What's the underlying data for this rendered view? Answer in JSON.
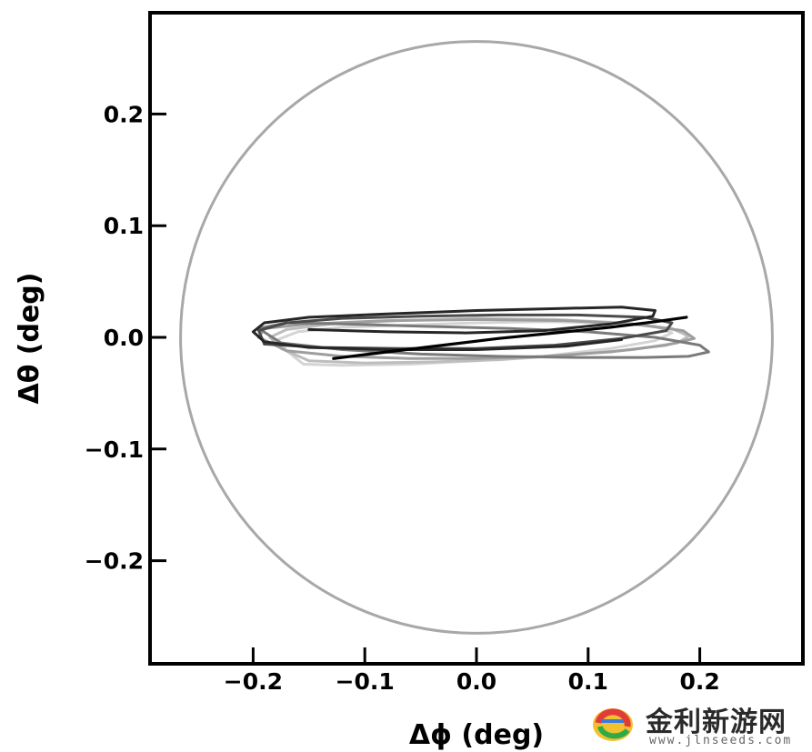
{
  "chart_data": {
    "type": "line",
    "title": "",
    "xlabel": "Δϕ (deg)",
    "ylabel": "Δθ (deg)",
    "xlim": [
      -0.29,
      0.29
    ],
    "ylim": [
      -0.29,
      0.29
    ],
    "x_ticks": [
      -0.2,
      -0.1,
      0.0,
      0.1,
      0.2
    ],
    "y_ticks": [
      -0.2,
      -0.1,
      0.0,
      0.1,
      0.2
    ],
    "x_tick_labels": [
      "−0.2",
      "−0.1",
      "0.0",
      "0.1",
      "0.2"
    ],
    "y_tick_labels": [
      "−0.2",
      "−0.1",
      "0.0",
      "0.1",
      "0.2"
    ],
    "grid": false,
    "legend": "none",
    "boundary_circle": {
      "center": [
        0.0,
        0.0
      ],
      "radius": 0.265,
      "color": "#a8a8a8"
    },
    "series": [
      {
        "color": "#d4d4d4",
        "points": [
          [
            -0.155,
            -0.024
          ],
          [
            -0.12,
            -0.025
          ],
          [
            -0.06,
            -0.024
          ],
          [
            0.0,
            -0.021
          ],
          [
            0.06,
            -0.017
          ],
          [
            0.12,
            -0.01
          ],
          [
            0.16,
            -0.003
          ],
          [
            0.175,
            0.004
          ],
          [
            0.16,
            0.01
          ],
          [
            0.12,
            0.013
          ],
          [
            0.06,
            0.014
          ],
          [
            0.0,
            0.013
          ],
          [
            -0.06,
            0.011
          ],
          [
            -0.12,
            0.009
          ],
          [
            -0.16,
            0.005
          ],
          [
            -0.178,
            -0.002
          ],
          [
            -0.17,
            -0.012
          ],
          [
            -0.155,
            -0.024
          ]
        ]
      },
      {
        "color": "#bdbdbd",
        "points": [
          [
            -0.15,
            -0.021
          ],
          [
            -0.1,
            -0.023
          ],
          [
            -0.04,
            -0.022
          ],
          [
            0.02,
            -0.02
          ],
          [
            0.08,
            -0.016
          ],
          [
            0.14,
            -0.011
          ],
          [
            0.18,
            -0.005
          ],
          [
            0.19,
            0.001
          ],
          [
            0.175,
            0.008
          ],
          [
            0.13,
            0.013
          ],
          [
            0.07,
            0.016
          ],
          [
            0.0,
            0.017
          ],
          [
            -0.07,
            0.015
          ],
          [
            -0.13,
            0.012
          ],
          [
            -0.17,
            0.007
          ],
          [
            -0.185,
            0.0
          ],
          [
            -0.175,
            -0.01
          ],
          [
            -0.15,
            -0.021
          ]
        ]
      },
      {
        "color": "#9e9e9e",
        "points": [
          [
            -0.17,
            -0.012
          ],
          [
            -0.12,
            -0.017
          ],
          [
            -0.06,
            -0.019
          ],
          [
            0.0,
            -0.019
          ],
          [
            0.06,
            -0.017
          ],
          [
            0.12,
            -0.013
          ],
          [
            0.17,
            -0.007
          ],
          [
            0.195,
            -0.001
          ],
          [
            0.185,
            0.006
          ],
          [
            0.14,
            0.012
          ],
          [
            0.08,
            0.015
          ],
          [
            0.0,
            0.016
          ],
          [
            -0.08,
            0.015
          ],
          [
            -0.15,
            0.012
          ],
          [
            -0.19,
            0.008
          ],
          [
            -0.195,
            0.0
          ],
          [
            -0.17,
            -0.012
          ]
        ]
      },
      {
        "color": "#7a7a7a",
        "points": [
          [
            -0.175,
            -0.005
          ],
          [
            -0.12,
            -0.011
          ],
          [
            -0.05,
            -0.015
          ],
          [
            0.02,
            -0.017
          ],
          [
            0.09,
            -0.018
          ],
          [
            0.15,
            -0.018
          ],
          [
            0.19,
            -0.017
          ],
          [
            0.208,
            -0.013
          ],
          [
            0.2,
            -0.007
          ],
          [
            0.16,
            0.0
          ],
          [
            0.1,
            0.005
          ],
          [
            0.03,
            0.008
          ],
          [
            -0.05,
            0.01
          ],
          [
            -0.12,
            0.012
          ],
          [
            -0.17,
            0.013
          ],
          [
            -0.195,
            0.008
          ],
          [
            -0.175,
            -0.005
          ]
        ]
      },
      {
        "color": "#4a4a4a",
        "points": [
          [
            -0.19,
            -0.006
          ],
          [
            -0.14,
            -0.009
          ],
          [
            -0.07,
            -0.01
          ],
          [
            0.0,
            -0.01
          ],
          [
            0.07,
            -0.007
          ],
          [
            0.13,
            -0.001
          ],
          [
            0.17,
            0.006
          ],
          [
            0.175,
            0.013
          ],
          [
            0.15,
            0.018
          ],
          [
            0.09,
            0.02
          ],
          [
            0.02,
            0.02
          ],
          [
            -0.05,
            0.019
          ],
          [
            -0.12,
            0.017
          ],
          [
            -0.17,
            0.013
          ],
          [
            -0.195,
            0.006
          ],
          [
            -0.19,
            -0.006
          ]
        ]
      },
      {
        "color": "#262626",
        "points": [
          [
            -0.15,
            0.007
          ],
          [
            -0.08,
            0.005
          ],
          [
            -0.01,
            0.004
          ],
          [
            0.06,
            0.006
          ],
          [
            0.12,
            0.012
          ],
          [
            0.158,
            0.019
          ],
          [
            0.16,
            0.024
          ],
          [
            0.13,
            0.027
          ],
          [
            0.08,
            0.026
          ],
          [
            0.0,
            0.024
          ],
          [
            -0.08,
            0.021
          ],
          [
            -0.15,
            0.018
          ],
          [
            -0.19,
            0.013
          ],
          [
            -0.2,
            0.005
          ],
          [
            -0.19,
            -0.004
          ],
          [
            -0.15,
            -0.009
          ],
          [
            -0.08,
            -0.011
          ],
          [
            0.0,
            -0.011
          ],
          [
            0.08,
            -0.008
          ],
          [
            0.13,
            -0.002
          ]
        ]
      },
      {
        "color": "#000000",
        "points": [
          [
            -0.128,
            -0.019
          ],
          [
            -0.08,
            -0.013
          ],
          [
            -0.03,
            -0.007
          ],
          [
            0.02,
            -0.001
          ],
          [
            0.07,
            0.004
          ],
          [
            0.12,
            0.009
          ],
          [
            0.16,
            0.014
          ],
          [
            0.188,
            0.018
          ]
        ]
      }
    ]
  },
  "watermark": {
    "text": "金利新游网",
    "url": "www.jlnseeds.com"
  }
}
